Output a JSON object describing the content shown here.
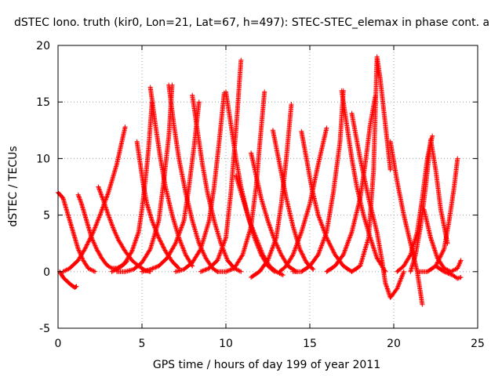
{
  "chart_data": {
    "type": "scatter",
    "title": "dSTEC Iono. truth (kir0, Lon=21, Lat=67, h=497): STEC-STEC_elemax in phase cont. a",
    "xlabel": "GPS time / hours of day 199 of year 2011",
    "ylabel": "dSTEC  / TECUs",
    "xlim": [
      0,
      25
    ],
    "ylim": [
      -5,
      20
    ],
    "x_ticks": [
      0,
      5,
      10,
      15,
      20,
      25
    ],
    "x_tick_labels": [
      "0",
      "5",
      "10",
      "15",
      "20",
      "25"
    ],
    "y_ticks": [
      -5,
      0,
      5,
      10,
      15,
      20
    ],
    "y_tick_labels": [
      "-5",
      "0",
      "5",
      "10",
      "15",
      "20"
    ],
    "grid": true,
    "marker": "+",
    "series_color": "#ff0000",
    "series": [
      {
        "arcs": [
          {
            "x": [
              0.0,
              0.3,
              0.6,
              0.9,
              1.2,
              1.5,
              1.8,
              2.2
            ],
            "y": [
              7.0,
              6.5,
              5.0,
              3.5,
              2.0,
              1.0,
              0.3,
              0.0
            ]
          },
          {
            "x": [
              0.1,
              0.3,
              0.5,
              0.8,
              1.0,
              1.1
            ],
            "y": [
              0.0,
              -0.5,
              -0.8,
              -1.2,
              -1.4,
              -1.3
            ]
          },
          {
            "x": [
              0.3,
              0.7,
              1.2,
              1.6,
              2.1,
              2.5,
              3.0,
              3.5,
              4.0
            ],
            "y": [
              0.0,
              0.3,
              1.0,
              2.0,
              3.5,
              5.0,
              7.0,
              9.5,
              12.8
            ]
          },
          {
            "x": [
              1.2,
              1.4,
              1.6,
              1.8,
              2.0,
              2.3,
              2.6,
              2.9,
              3.2,
              3.5,
              3.8,
              4.1
            ],
            "y": [
              6.8,
              6.0,
              5.0,
              4.0,
              3.0,
              2.0,
              1.2,
              0.6,
              0.3,
              0.3,
              0.5,
              0.9
            ]
          },
          {
            "x": [
              2.4,
              2.7,
              3.0,
              3.3,
              3.6,
              4.0,
              4.4,
              4.8,
              5.2,
              5.5
            ],
            "y": [
              7.5,
              6.3,
              5.0,
              3.8,
              2.8,
              1.8,
              1.0,
              0.5,
              0.1,
              0.0
            ]
          },
          {
            "x": [
              3.2,
              3.6,
              4.0,
              4.4,
              4.8,
              5.0,
              5.2,
              5.4,
              5.6
            ],
            "y": [
              0.0,
              0.3,
              0.8,
              1.8,
              3.5,
              5.5,
              8.0,
              11.0,
              15.0
            ]
          },
          {
            "x": [
              4.7,
              4.9,
              5.1,
              5.3,
              5.6,
              6.0,
              6.4,
              6.8,
              7.2
            ],
            "y": [
              11.5,
              9.5,
              7.5,
              6.0,
              4.5,
              3.0,
              1.8,
              0.9,
              0.3
            ]
          },
          {
            "x": [
              3.5,
              4.0,
              4.5,
              5.0,
              5.5,
              6.0,
              6.3,
              6.6,
              6.8
            ],
            "y": [
              0.0,
              0.0,
              0.2,
              0.8,
              2.0,
              4.5,
              8.0,
              12.0,
              16.5
            ]
          },
          {
            "x": [
              5.5,
              5.8,
              6.1,
              6.4,
              6.8,
              7.2,
              7.6,
              8.0
            ],
            "y": [
              16.3,
              13.0,
              10.0,
              7.5,
              5.0,
              3.0,
              1.5,
              0.5
            ]
          },
          {
            "x": [
              5.0,
              5.5,
              6.0,
              6.5,
              7.0,
              7.5,
              7.8,
              8.1,
              8.4
            ],
            "y": [
              0.0,
              0.2,
              0.5,
              1.2,
              2.5,
              4.5,
              7.5,
              11.0,
              15.0
            ]
          },
          {
            "x": [
              6.6,
              6.9,
              7.2,
              7.6,
              8.0,
              8.4,
              8.8,
              9.2,
              9.5
            ],
            "y": [
              16.5,
              13.0,
              10.0,
              7.0,
              4.5,
              2.5,
              1.2,
              0.3,
              0.0
            ]
          },
          {
            "x": [
              7.0,
              7.5,
              8.0,
              8.5,
              9.0,
              9.3,
              9.6,
              9.9
            ],
            "y": [
              0.0,
              0.2,
              0.8,
              2.0,
              4.5,
              7.5,
              11.5,
              15.8
            ]
          },
          {
            "x": [
              8.0,
              8.3,
              8.6,
              8.9,
              9.3,
              9.7,
              10.1,
              10.5,
              10.9
            ],
            "y": [
              15.6,
              12.5,
              9.5,
              7.0,
              4.5,
              2.5,
              1.0,
              0.3,
              0.0
            ]
          },
          {
            "x": [
              8.5,
              9.0,
              9.5,
              10.0,
              10.3,
              10.6,
              10.9
            ],
            "y": [
              0.0,
              0.3,
              1.0,
              3.0,
              7.0,
              12.5,
              18.7
            ]
          },
          {
            "x": [
              10.0,
              10.3,
              10.6,
              10.9,
              11.3,
              11.7,
              12.1,
              12.5,
              12.9
            ],
            "y": [
              15.9,
              13.0,
              10.0,
              7.5,
              5.0,
              3.0,
              1.5,
              0.5,
              0.0
            ]
          },
          {
            "x": [
              9.5,
              10.0,
              10.5,
              11.0,
              11.5,
              11.8,
              12.0,
              12.3
            ],
            "y": [
              0.0,
              0.0,
              0.3,
              1.5,
              4.0,
              7.5,
              11.0,
              15.9
            ]
          },
          {
            "x": [
              10.6,
              11.0,
              11.4,
              11.8,
              12.2,
              12.6,
              13.0,
              13.4
            ],
            "y": [
              8.5,
              6.5,
              4.5,
              3.0,
              1.5,
              0.5,
              0.0,
              -0.3
            ]
          },
          {
            "x": [
              11.5,
              11.8,
              12.1,
              12.5,
              12.9,
              13.3,
              13.7,
              14.2
            ],
            "y": [
              10.5,
              8.5,
              6.5,
              4.5,
              2.8,
              1.5,
              0.5,
              0.0
            ]
          },
          {
            "x": [
              11.5,
              12.0,
              12.5,
              13.0,
              13.3,
              13.6,
              13.9
            ],
            "y": [
              -0.5,
              0.0,
              1.0,
              3.0,
              6.0,
              10.0,
              14.8
            ]
          },
          {
            "x": [
              12.8,
              13.2,
              13.6,
              14.0,
              14.4,
              14.8,
              15.2
            ],
            "y": [
              12.5,
              9.5,
              6.5,
              4.0,
              2.0,
              0.8,
              0.2
            ]
          },
          {
            "x": [
              13.2,
              13.6,
              14.0,
              14.5,
              15.0,
              15.5,
              16.0
            ],
            "y": [
              0.0,
              0.5,
              1.5,
              3.5,
              6.0,
              9.5,
              12.7
            ]
          },
          {
            "x": [
              14.5,
              14.8,
              15.1,
              15.5,
              16.0,
              16.5,
              17.0,
              17.5
            ],
            "y": [
              12.4,
              10.0,
              7.5,
              5.0,
              3.0,
              1.5,
              0.5,
              0.0
            ]
          },
          {
            "x": [
              14.0,
              14.5,
              15.0,
              15.5,
              16.0,
              16.4,
              16.8,
              17.0
            ],
            "y": [
              0.0,
              0.0,
              0.5,
              1.5,
              3.5,
              7.0,
              11.5,
              16.0
            ]
          },
          {
            "x": [
              16.9,
              17.2,
              17.5,
              17.8,
              18.2,
              18.6,
              19.0,
              19.5
            ],
            "y": [
              16.0,
              13.0,
              10.0,
              7.5,
              5.0,
              3.0,
              1.2,
              0.0
            ]
          },
          {
            "x": [
              16.0,
              16.5,
              17.0,
              17.5,
              18.0,
              18.3,
              18.6,
              18.9
            ],
            "y": [
              0.0,
              0.5,
              1.5,
              3.5,
              6.5,
              9.5,
              13.0,
              15.5
            ]
          },
          {
            "x": [
              17.5,
              18.0,
              18.5,
              19.0,
              19.3,
              19.5,
              19.8,
              20.2,
              20.6
            ],
            "y": [
              14.0,
              10.0,
              6.5,
              3.5,
              1.0,
              -1.0,
              -2.3,
              -1.5,
              0.0
            ]
          },
          {
            "x": [
              17.5,
              18.0,
              18.5,
              18.8,
              19.0,
              19.2,
              19.5,
              19.8
            ],
            "y": [
              0.0,
              0.5,
              3.0,
              9.0,
              19.0,
              17.0,
              13.0,
              9.0
            ]
          },
          {
            "x": [
              19.8,
              20.2,
              20.6,
              21.0,
              21.4,
              21.7
            ],
            "y": [
              11.5,
              8.0,
              5.0,
              2.5,
              0.0,
              -2.9
            ]
          },
          {
            "x": [
              20.2,
              20.6,
              21.0,
              21.4,
              21.7,
              22.0,
              22.3
            ],
            "y": [
              0.0,
              0.5,
              1.5,
              3.5,
              6.5,
              10.0,
              12.0
            ]
          },
          {
            "x": [
              21.0,
              21.3,
              21.6,
              21.9,
              22.2,
              22.5,
              22.8,
              23.2
            ],
            "y": [
              0.0,
              1.5,
              4.0,
              7.5,
              11.7,
              9.0,
              5.5,
              2.5
            ]
          },
          {
            "x": [
              21.5,
              22.0,
              22.5,
              23.0,
              23.3,
              23.6,
              23.8
            ],
            "y": [
              0.0,
              0.0,
              0.5,
              2.0,
              4.5,
              7.5,
              10.0
            ]
          },
          {
            "x": [
              21.8,
              22.2,
              22.6,
              23.0,
              23.4,
              23.8,
              24.0
            ],
            "y": [
              5.5,
              3.0,
              1.2,
              0.3,
              0.0,
              0.3,
              1.0
            ]
          },
          {
            "x": [
              22.5,
              23.0,
              23.5,
              23.8,
              24.0
            ],
            "y": [
              0.5,
              0.0,
              -0.3,
              -0.6,
              -0.5
            ]
          }
        ]
      }
    ]
  }
}
